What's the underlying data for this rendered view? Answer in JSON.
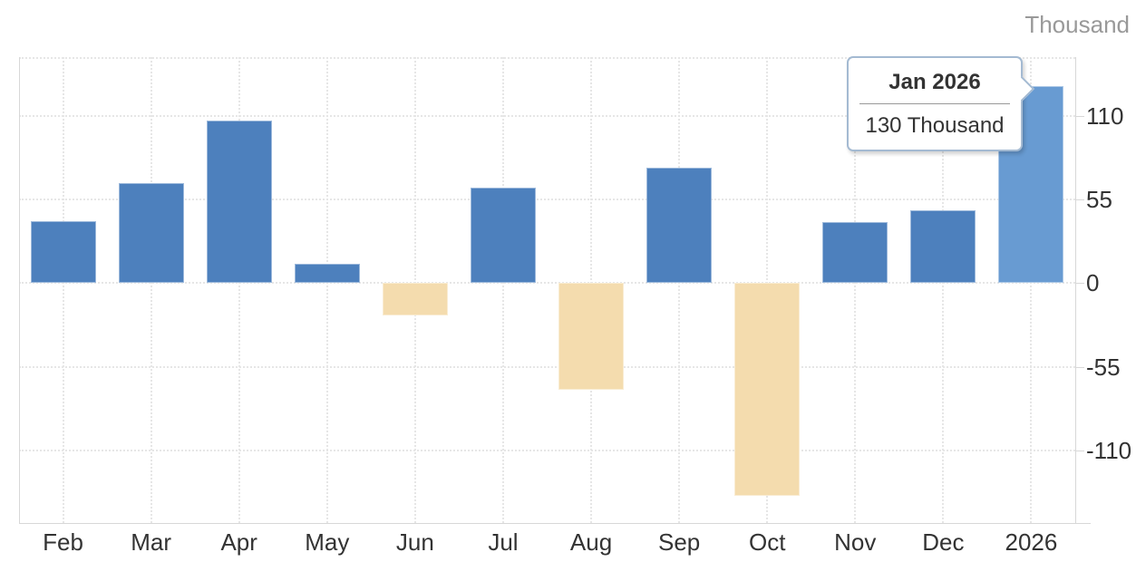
{
  "unit_label": "Thousand",
  "tooltip": {
    "title": "Jan 2026",
    "value": "130 Thousand"
  },
  "colors": {
    "bar_positive": "#4d80bd",
    "bar_negative": "#f4dcae",
    "bar_highlight": "#689bd2",
    "grid": "#e6e6e6",
    "axis": "#d8d8d8",
    "tick_label": "#333333",
    "unit_label": "#999999",
    "tooltip_border": "#a4bad2"
  },
  "chart_data": {
    "type": "bar",
    "title": "",
    "xlabel": "",
    "ylabel": "Thousand",
    "categories": [
      "Feb",
      "Mar",
      "Apr",
      "May",
      "Jun",
      "Jul",
      "Aug",
      "Sep",
      "Oct",
      "Nov",
      "Dec",
      "2026"
    ],
    "values": [
      41,
      66,
      107,
      13,
      -21,
      63,
      -70,
      76,
      -140,
      40,
      48,
      130
    ],
    "highlighted_index": 11,
    "highlighted_point_label": "Jan 2026",
    "highlighted_point_value": "130 Thousand",
    "yticks": [
      110,
      55,
      0,
      -55,
      -110
    ],
    "ylim": [
      -158,
      149
    ],
    "grid": true,
    "legend": "none",
    "y_axis_position": "right"
  }
}
